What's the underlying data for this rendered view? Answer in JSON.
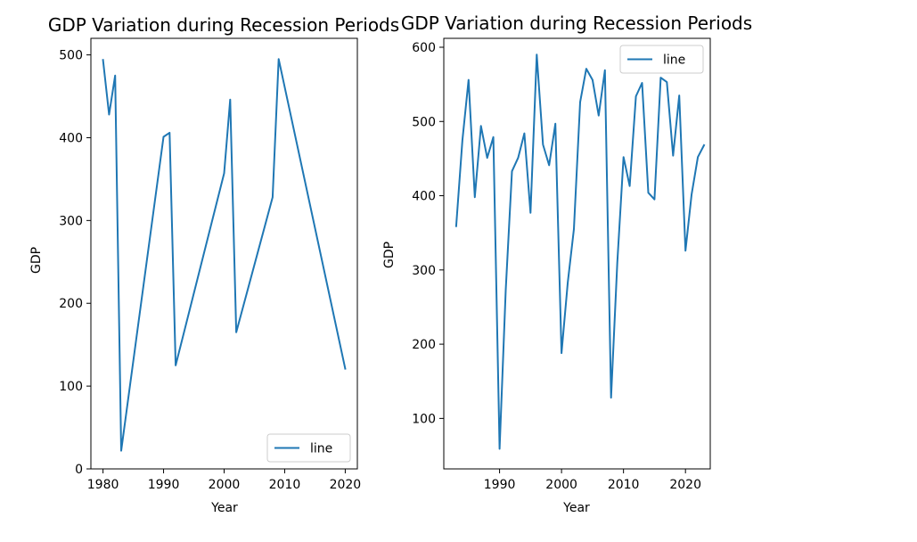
{
  "chart_data": [
    {
      "type": "line",
      "title": "GDP Variation during Recession Periods",
      "xlabel": "Year",
      "ylabel": "GDP",
      "xlim": [
        1978,
        2022
      ],
      "ylim": [
        0,
        520
      ],
      "xticks": [
        1980,
        1990,
        2000,
        2010,
        2020
      ],
      "yticks": [
        0,
        100,
        200,
        300,
        400,
        500
      ],
      "legend_position": "lower right",
      "series": [
        {
          "name": "line",
          "color": "#1f77b4",
          "x": [
            1980,
            1981,
            1982,
            1983,
            1990,
            1991,
            1992,
            2000,
            2001,
            2002,
            2008,
            2009,
            2020
          ],
          "y": [
            494,
            428,
            475,
            22,
            401,
            406,
            125,
            357,
            446,
            165,
            328,
            495,
            121
          ]
        }
      ]
    },
    {
      "type": "line",
      "title": "GDP Variation during Recession Periods",
      "xlabel": "Year",
      "ylabel": "GDP",
      "xlim": [
        1981,
        2024
      ],
      "ylim": [
        32,
        612
      ],
      "xticks": [
        1990,
        2000,
        2010,
        2020
      ],
      "yticks": [
        100,
        200,
        300,
        400,
        500,
        600
      ],
      "legend_position": "upper right",
      "series": [
        {
          "name": "line",
          "color": "#1f77b4",
          "x": [
            1983,
            1984,
            1985,
            1986,
            1987,
            1988,
            1989,
            1990,
            1991,
            1992,
            1993,
            1994,
            1995,
            1996,
            1997,
            1998,
            1999,
            2000,
            2001,
            2002,
            2003,
            2004,
            2005,
            2006,
            2007,
            2008,
            2009,
            2010,
            2011,
            2012,
            2013,
            2014,
            2015,
            2016,
            2017,
            2018,
            2019,
            2020,
            2021,
            2022,
            2023
          ],
          "y": [
            359,
            475,
            556,
            398,
            494,
            451,
            479,
            59,
            273,
            433,
            451,
            484,
            377,
            590,
            469,
            441,
            497,
            188,
            283,
            355,
            526,
            571,
            556,
            508,
            569,
            128,
            310,
            452,
            413,
            534,
            552,
            404,
            395,
            559,
            553,
            454,
            535,
            326,
            402,
            452,
            468
          ]
        }
      ]
    }
  ]
}
